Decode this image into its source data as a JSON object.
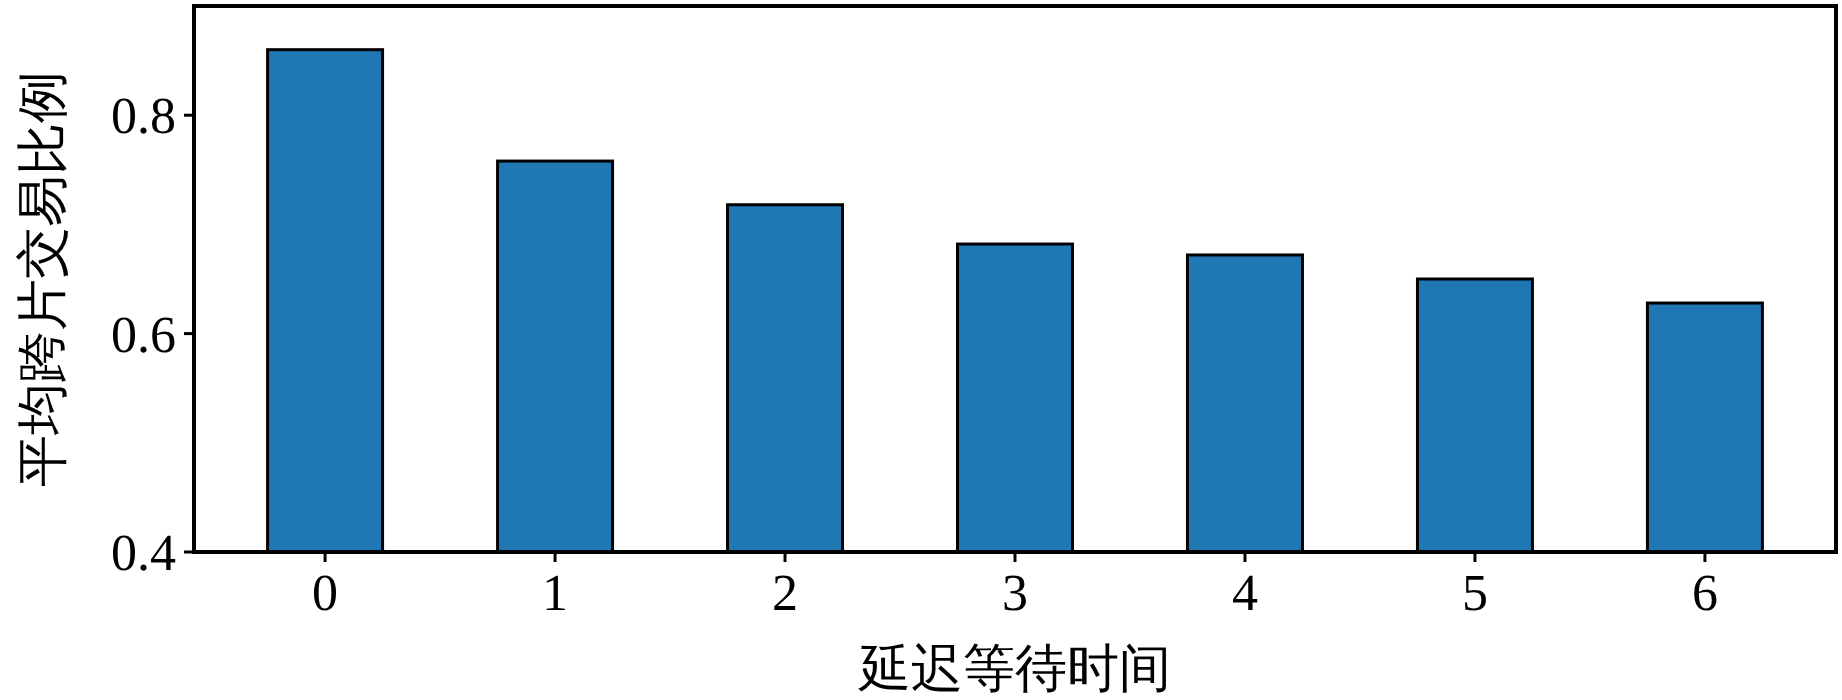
{
  "chart_data": {
    "type": "bar",
    "xlabel": "延迟等待时间",
    "ylabel": "平均跨片交易比例",
    "categories": [
      "0",
      "1",
      "2",
      "3",
      "4",
      "5",
      "6"
    ],
    "values": [
      0.86,
      0.758,
      0.718,
      0.682,
      0.672,
      0.65,
      0.628
    ],
    "color": "#1f77b4",
    "ylim": [
      0.4,
      0.9
    ],
    "yticks": [
      0.4,
      0.6,
      0.8
    ],
    "grid": false
  }
}
